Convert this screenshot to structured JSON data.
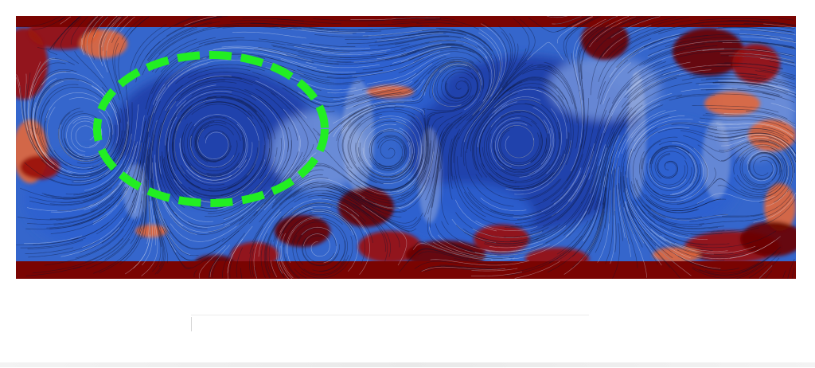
{
  "figure": {
    "field_colors": {
      "low_deep": "#1c3fa8",
      "low": "#2e5fcf",
      "mid": "#6f8fd8",
      "neutral": "#c9cfe0",
      "warm": "#e0673e",
      "high": "#9a1208",
      "high_deep": "#6a0000"
    },
    "highlight_color": "#22ee22",
    "highlight_style": "dashed-ellipse",
    "streamline_color": "#0b1230"
  }
}
